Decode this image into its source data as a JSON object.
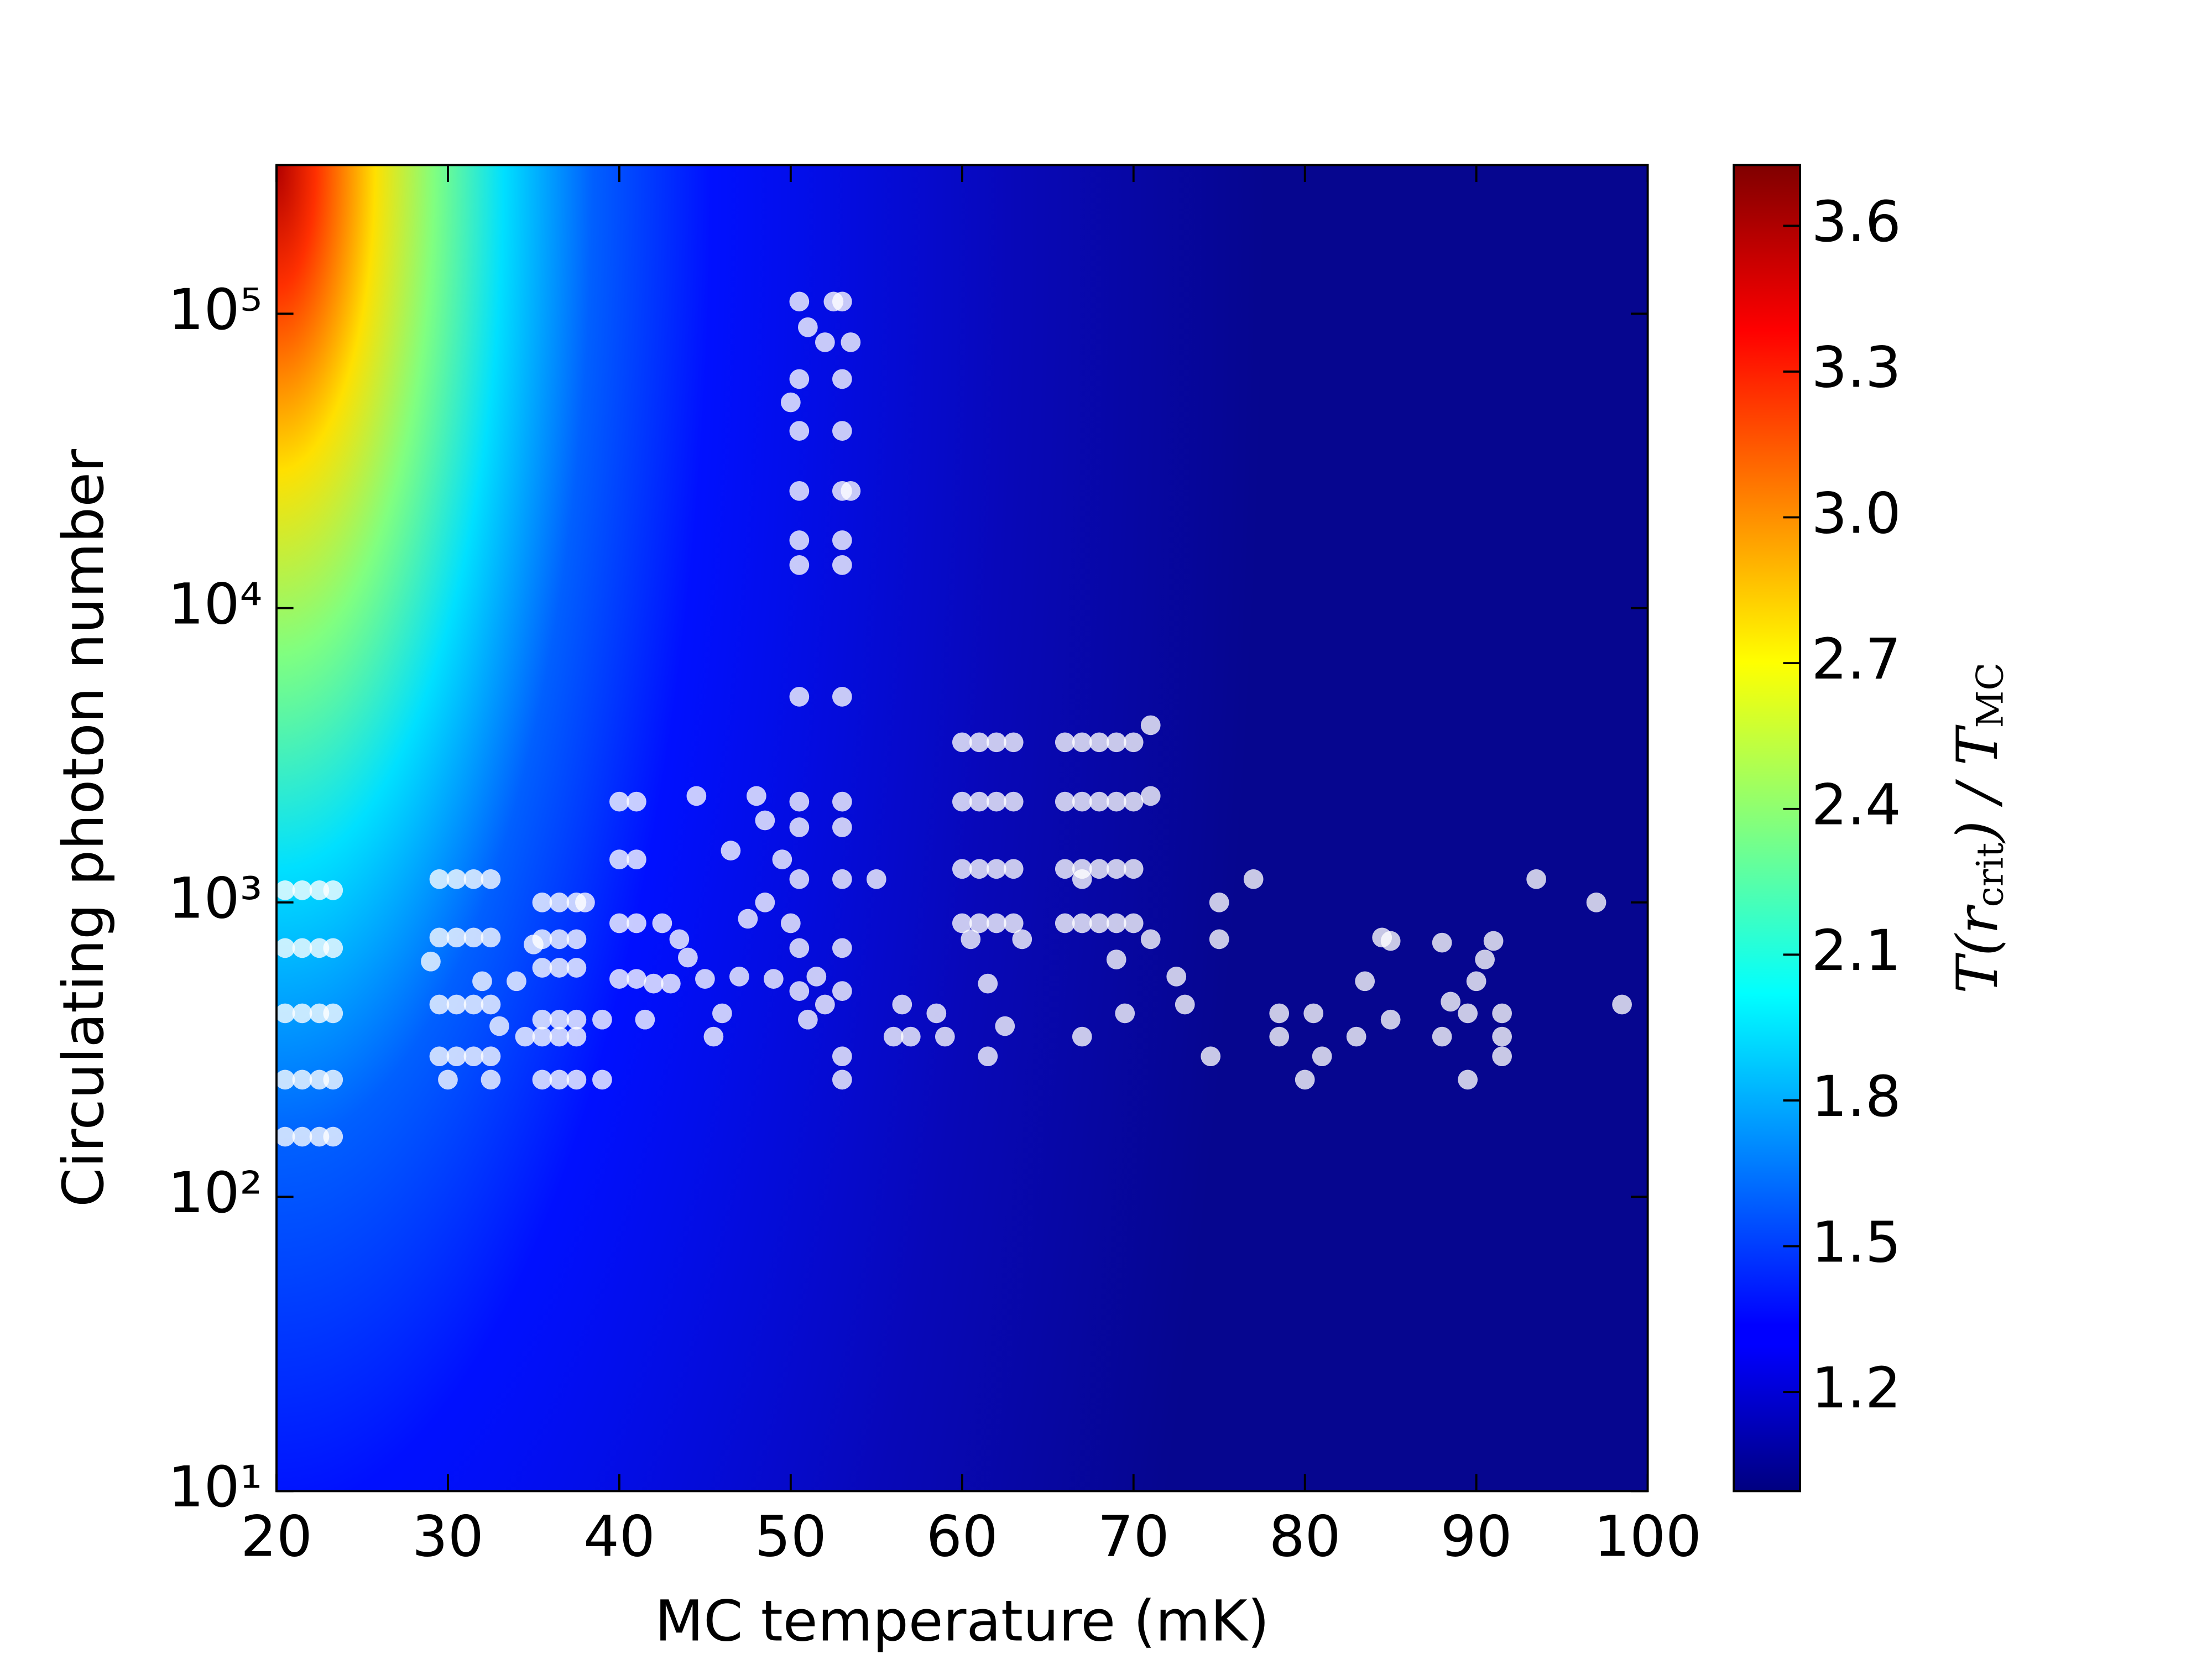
{
  "chart_data": {
    "type": "scatter",
    "x_label": "MC temperature (mK)",
    "y_label": "Circulating photon number",
    "colorbar_label": [
      "T(r",
      "crit",
      ") / T",
      "MC"
    ],
    "xlim": [
      20,
      100
    ],
    "xticks": [
      20,
      30,
      40,
      50,
      60,
      70,
      80,
      90,
      100
    ],
    "ylim": [
      10,
      320000
    ],
    "y_scale": "log",
    "yticks": [
      {
        "value": 10,
        "label": "10¹"
      },
      {
        "value": 100,
        "label": "10²"
      },
      {
        "value": 1000,
        "label": "10³"
      },
      {
        "value": 10000,
        "label": "10⁴"
      },
      {
        "value": 100000,
        "label": "10⁵"
      }
    ],
    "colorbar_lim": [
      0.996,
      3.725
    ],
    "colorbar_ticks": [
      1.2,
      1.5,
      1.8,
      2.1,
      2.4,
      2.7,
      {
        "value": 3,
        "label": "3.0"
      },
      3.3,
      3.6
    ],
    "color": "#ffffff",
    "x": [
      20.5,
      21.5,
      22.5,
      23.3,
      20.5,
      21.5,
      22.5,
      23.3,
      20.5,
      21.5,
      22.5,
      23.3,
      20.5,
      21.5,
      22.5,
      23.3,
      20.5,
      21.5,
      22.5,
      23.3,
      29.5,
      30.5,
      31.5,
      32.5,
      29.5,
      30.5,
      31.5,
      32.5,
      29.5,
      30.5,
      31.5,
      32.5,
      29.5,
      30.5,
      31.5,
      32.5,
      29,
      30,
      32.5,
      33,
      32,
      35.5,
      36.5,
      37.5,
      35.5,
      36.5,
      37.5,
      35.5,
      36.5,
      37.5,
      35.5,
      36.5,
      37.5,
      35.5,
      36.5,
      37.5,
      35.5,
      36.5,
      37.5,
      34,
      35,
      38,
      39,
      39,
      34.5,
      40,
      41,
      40,
      41,
      40,
      41,
      40,
      41,
      41.5,
      42,
      42.5,
      43,
      43.5,
      44,
      44.5,
      45,
      45.5,
      46.5,
      46,
      47,
      47.5,
      48,
      48.5,
      48.5,
      50.5,
      53,
      50.5,
      53,
      50.5,
      53,
      50.5,
      53,
      50.5,
      53,
      50.5,
      53,
      50.5,
      53,
      50.5,
      53,
      50.5,
      53,
      50.5,
      53,
      50.5,
      53,
      50.5,
      53,
      50,
      51,
      52.5,
      52,
      53.5,
      53.5,
      49.5,
      50,
      49,
      51,
      52,
      53,
      53,
      55,
      51.5,
      60,
      61,
      62,
      63,
      60,
      61,
      62,
      63,
      60,
      61,
      62,
      63,
      60,
      61,
      62,
      63,
      61.5,
      61.5,
      62.5,
      63.5,
      66,
      67,
      68,
      69,
      70,
      66,
      67,
      68,
      69,
      70,
      66,
      67,
      68,
      69,
      70,
      66,
      67,
      68,
      69,
      70,
      71,
      71,
      67,
      69,
      71,
      69.5,
      67,
      72.5,
      56,
      57,
      56.5,
      58.5,
      59,
      60.5,
      73,
      75,
      75,
      74.5,
      77,
      78.5,
      78.5,
      80,
      80.5,
      81,
      83,
      83.5,
      84.5,
      85,
      85,
      88,
      88,
      88.5,
      89.5,
      90,
      90.5,
      91,
      91.5,
      91.5,
      91.5,
      89.5,
      93.5,
      97,
      98.5
    ],
    "values": [
      1100,
      1100,
      1100,
      1100,
      700,
      700,
      700,
      700,
      420,
      420,
      420,
      420,
      250,
      250,
      250,
      250,
      160,
      160,
      160,
      160,
      1200,
      1200,
      1200,
      1200,
      760,
      760,
      760,
      760,
      450,
      450,
      450,
      450,
      300,
      300,
      300,
      300,
      630,
      250,
      250,
      380,
      540,
      1000,
      1000,
      1000,
      750,
      750,
      750,
      600,
      600,
      600,
      400,
      400,
      400,
      350,
      350,
      350,
      250,
      250,
      250,
      540,
      720,
      1000,
      400,
      250,
      350,
      2200,
      2200,
      1400,
      1400,
      850,
      850,
      550,
      550,
      400,
      530,
      850,
      530,
      750,
      650,
      2300,
      550,
      350,
      1500,
      420,
      560,
      880,
      2300,
      1900,
      1000,
      110000,
      110000,
      60000,
      60000,
      40000,
      40000,
      25000,
      25000,
      17000,
      17000,
      14000,
      14000,
      5000,
      5000,
      2200,
      2200,
      1800,
      1800,
      1200,
      1200,
      700,
      700,
      500,
      500,
      50000,
      90000,
      110000,
      80000,
      80000,
      25000,
      1400,
      850,
      550,
      400,
      450,
      300,
      250,
      1200,
      560,
      3500,
      3500,
      3500,
      3500,
      2200,
      2200,
      2200,
      2200,
      1300,
      1300,
      1300,
      1300,
      850,
      850,
      850,
      850,
      530,
      300,
      380,
      750,
      3500,
      3500,
      3500,
      3500,
      3500,
      2200,
      2200,
      2200,
      2200,
      2200,
      1300,
      1300,
      1300,
      1300,
      1300,
      850,
      850,
      850,
      850,
      850,
      4000,
      2300,
      1200,
      640,
      750,
      420,
      350,
      560,
      350,
      350,
      450,
      420,
      350,
      750,
      450,
      1000,
      750,
      300,
      1200,
      420,
      350,
      250,
      420,
      300,
      350,
      540,
      760,
      740,
      400,
      730,
      350,
      460,
      420,
      540,
      640,
      740,
      420,
      350,
      300,
      250,
      1200,
      1000,
      450
    ]
  }
}
